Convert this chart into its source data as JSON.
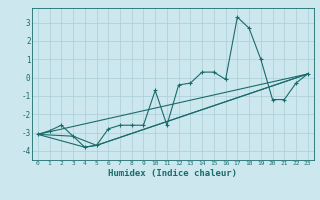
{
  "xlabel": "Humidex (Indice chaleur)",
  "ylabel": "",
  "xlim": [
    -0.5,
    23.5
  ],
  "ylim": [
    -4.5,
    3.8
  ],
  "xticks": [
    0,
    1,
    2,
    3,
    4,
    5,
    6,
    7,
    8,
    9,
    10,
    11,
    12,
    13,
    14,
    15,
    16,
    17,
    18,
    19,
    20,
    21,
    22,
    23
  ],
  "yticks": [
    -4,
    -3,
    -2,
    -1,
    0,
    1,
    2,
    3
  ],
  "bg_color": "#cce8ee",
  "grid_color": "#aacdd6",
  "line_color": "#1a6b6b",
  "line1_x": [
    0,
    1,
    2,
    3,
    4,
    5,
    6,
    7,
    8,
    9,
    10,
    11,
    12,
    13,
    14,
    15,
    16,
    17,
    18,
    19,
    20,
    21,
    22,
    23
  ],
  "line1_y": [
    -3.1,
    -2.9,
    -2.6,
    -3.2,
    -3.8,
    -3.7,
    -2.8,
    -2.6,
    -2.6,
    -2.6,
    -0.7,
    -2.6,
    -0.4,
    -0.3,
    0.3,
    0.3,
    -0.1,
    3.3,
    2.7,
    1.0,
    -1.2,
    -1.2,
    -0.3,
    0.2
  ],
  "line2_x": [
    0,
    23
  ],
  "line2_y": [
    -3.1,
    0.2
  ],
  "line3_x": [
    0,
    3,
    5,
    23
  ],
  "line3_y": [
    -3.1,
    -3.2,
    -3.7,
    0.2
  ],
  "line4_x": [
    0,
    4,
    5,
    23
  ],
  "line4_y": [
    -3.1,
    -3.8,
    -3.7,
    0.2
  ]
}
